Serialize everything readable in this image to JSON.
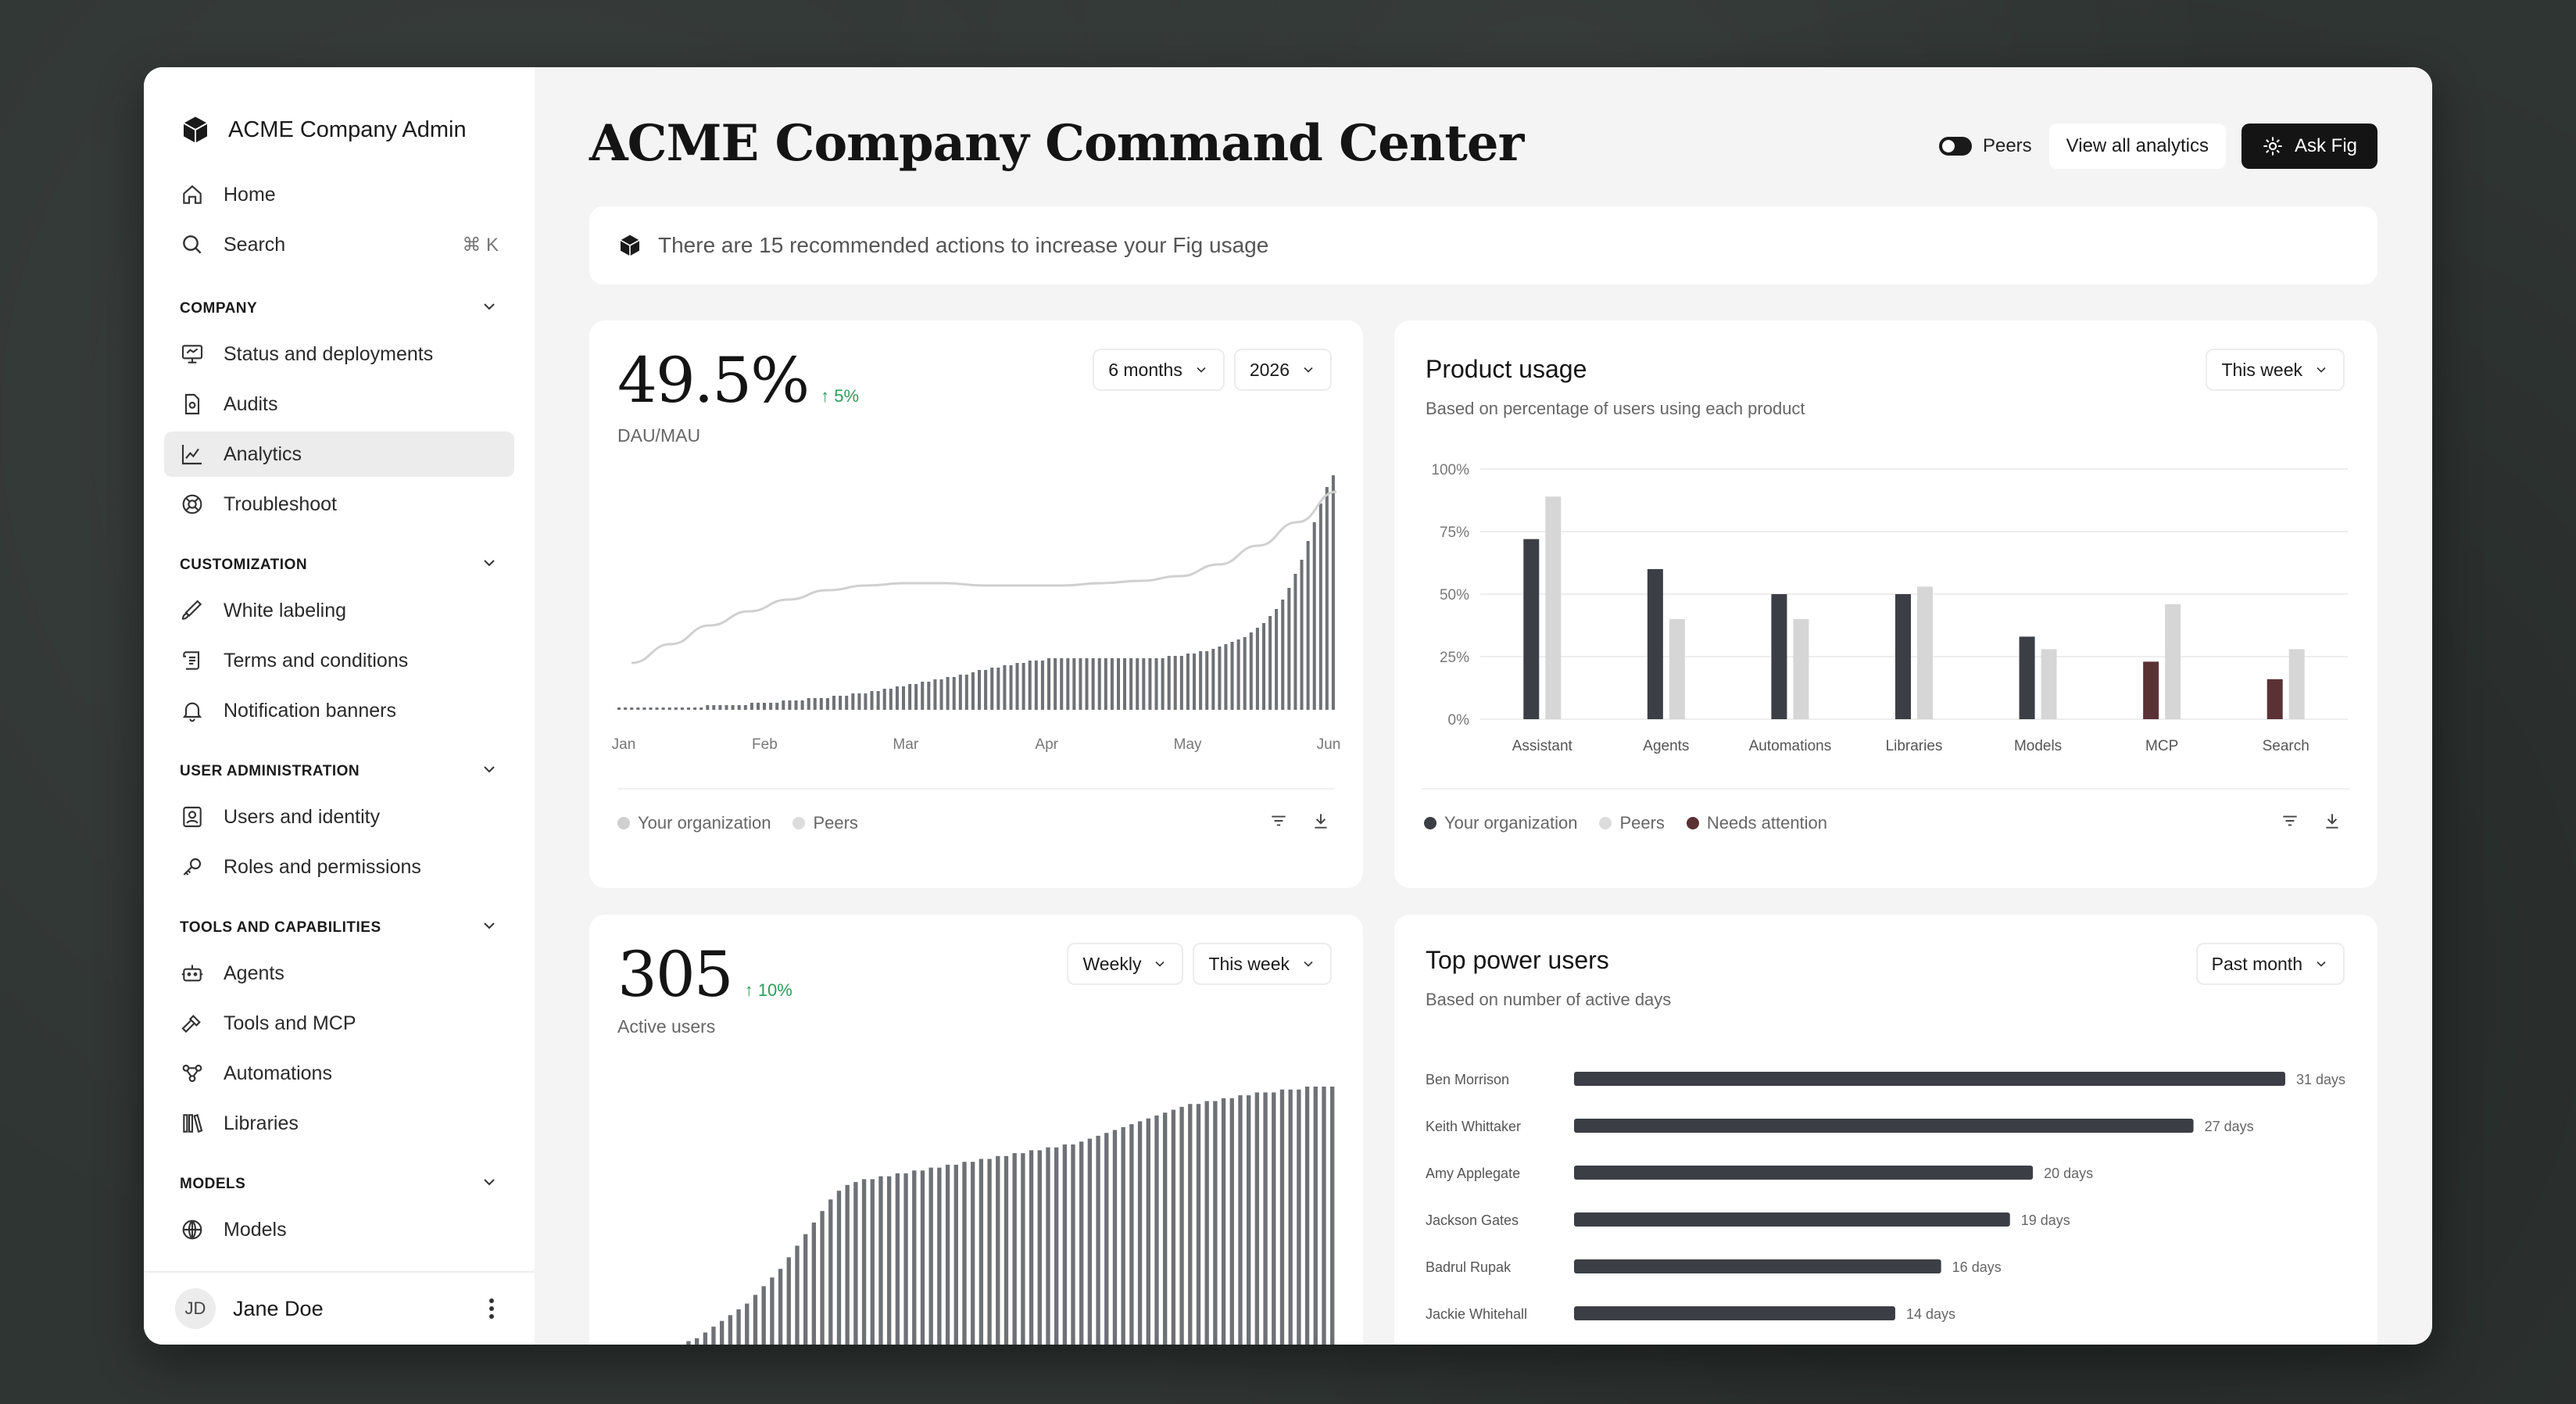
{
  "sidebar": {
    "brand": "ACME Company Admin",
    "top_items": [
      {
        "label": "Home",
        "icon": "home-icon"
      },
      {
        "label": "Search",
        "icon": "search-icon",
        "shortcut": "⌘ K"
      }
    ],
    "sections": [
      {
        "title": "COMPANY",
        "items": [
          {
            "label": "Status and deployments",
            "icon": "monitor-icon"
          },
          {
            "label": "Audits",
            "icon": "document-icon"
          },
          {
            "label": "Analytics",
            "icon": "chart-icon",
            "active": true
          },
          {
            "label": "Troubleshoot",
            "icon": "lifebuoy-icon"
          }
        ]
      },
      {
        "title": "CUSTOMIZATION",
        "items": [
          {
            "label": "White labeling",
            "icon": "brush-icon"
          },
          {
            "label": "Terms and conditions",
            "icon": "scroll-icon"
          },
          {
            "label": "Notification banners",
            "icon": "bell-icon"
          }
        ]
      },
      {
        "title": "USER ADMINISTRATION",
        "items": [
          {
            "label": "Users and identity",
            "icon": "id-card-icon"
          },
          {
            "label": "Roles and permissions",
            "icon": "key-icon"
          }
        ]
      },
      {
        "title": "TOOLS AND CAPABILITIES",
        "items": [
          {
            "label": "Agents",
            "icon": "robot-icon"
          },
          {
            "label": "Tools and MCP",
            "icon": "hammer-icon"
          },
          {
            "label": "Automations",
            "icon": "workflow-icon"
          },
          {
            "label": "Libraries",
            "icon": "books-icon"
          }
        ]
      },
      {
        "title": "MODELS",
        "items": [
          {
            "label": "Models",
            "icon": "globe-icon"
          }
        ]
      }
    ],
    "user": {
      "initials": "JD",
      "name": "Jane Doe"
    }
  },
  "header": {
    "title": "ACME Company Command Center",
    "peers_label": "Peers",
    "view_all": "View all analytics",
    "ask": "Ask Fig"
  },
  "banner": {
    "text": "There are 15 recommended actions to increase your Fig usage"
  },
  "dau_card": {
    "value": "49.5%",
    "delta": "↑ 5%",
    "label": "DAU/MAU",
    "range": "6 months",
    "year": "2026",
    "legend": [
      "Your organization",
      "Peers"
    ]
  },
  "usage_card": {
    "title": "Product usage",
    "subtitle": "Based on percentage of users using each product",
    "range": "This week",
    "legend": [
      "Your organization",
      "Peers",
      "Needs attention"
    ]
  },
  "active_card": {
    "value": "305",
    "delta": "↑ 10%",
    "label": "Active users",
    "granularity": "Weekly",
    "range": "This week"
  },
  "power_card": {
    "title": "Top power users",
    "subtitle": "Based on number of active days",
    "range": "Past month"
  },
  "colors": {
    "org": "#3b3f45",
    "peers": "#d6d6d6",
    "attention": "#5a3236",
    "positive": "#2f9a5a"
  },
  "chart_data": [
    {
      "type": "bar",
      "title": "DAU/MAU",
      "x_ticks": [
        "Jan",
        "Feb",
        "Mar",
        "Apr",
        "May",
        "Jun"
      ],
      "series": [
        {
          "name": "Your organization",
          "type": "bar",
          "values": [
            1,
            1,
            1,
            1,
            1,
            1,
            1,
            1,
            1,
            1,
            1,
            1,
            1,
            1,
            2,
            2,
            2,
            2,
            2,
            2,
            2,
            3,
            3,
            3,
            3,
            3,
            4,
            4,
            4,
            4,
            5,
            5,
            5,
            5,
            6,
            6,
            6,
            7,
            7,
            7,
            8,
            8,
            9,
            9,
            10,
            10,
            11,
            11,
            12,
            12,
            13,
            13,
            14,
            14,
            15,
            15,
            16,
            17,
            17,
            18,
            18,
            19,
            19,
            20,
            20,
            21,
            21,
            21,
            22,
            22,
            22,
            22,
            22,
            22,
            22,
            22,
            22,
            22,
            22,
            22,
            22,
            22,
            22,
            22,
            22,
            22,
            22,
            23,
            23,
            23,
            24,
            24,
            25,
            25,
            26,
            27,
            28,
            29,
            30,
            31,
            33,
            35,
            37,
            40,
            43,
            47,
            52,
            58,
            64,
            72,
            80,
            88,
            95,
            100
          ]
        },
        {
          "name": "Peers",
          "type": "line",
          "values": [
            20,
            28,
            36,
            42,
            47,
            51,
            53,
            54,
            54,
            53,
            53,
            53,
            54,
            55,
            57,
            62,
            70,
            80,
            93
          ]
        }
      ]
    },
    {
      "type": "bar",
      "title": "Product usage",
      "categories": [
        "Assistant",
        "Agents",
        "Automations",
        "Libraries",
        "Models",
        "MCP",
        "Search"
      ],
      "y_ticks": [
        "100%",
        "75%",
        "50%",
        "25%",
        "0%"
      ],
      "ylim": [
        0,
        100
      ],
      "series": [
        {
          "name": "Your organization",
          "values": [
            72,
            60,
            50,
            50,
            33,
            23,
            16
          ],
          "status": [
            "ok",
            "ok",
            "ok",
            "ok",
            "ok",
            "attention",
            "attention"
          ]
        },
        {
          "name": "Peers",
          "values": [
            89,
            40,
            40,
            53,
            28,
            46,
            28
          ]
        }
      ]
    },
    {
      "type": "bar",
      "title": "Active users",
      "series": [
        {
          "name": "Active users",
          "values": [
            3,
            4,
            5,
            6,
            7,
            8,
            9,
            10,
            12,
            13,
            15,
            17,
            19,
            21,
            23,
            25,
            28,
            31,
            34,
            37,
            41,
            45,
            49,
            53,
            57,
            61,
            64,
            66,
            67,
            68,
            68,
            69,
            69,
            70,
            70,
            71,
            71,
            72,
            72,
            73,
            73,
            74,
            74,
            75,
            75,
            76,
            76,
            77,
            77,
            78,
            78,
            79,
            79,
            80,
            80,
            81,
            82,
            83,
            84,
            85,
            86,
            87,
            88,
            89,
            90,
            91,
            92,
            93,
            94,
            94,
            95,
            95,
            96,
            96,
            97,
            97,
            98,
            98,
            98,
            99,
            99,
            99,
            100,
            100,
            100,
            100
          ]
        }
      ]
    },
    {
      "type": "bar",
      "title": "Top power users",
      "categories": [
        "Ben Morrison",
        "Keith Whittaker",
        "Amy Applegate",
        "Jackson Gates",
        "Badrul Rupak",
        "Jackie Whitehall"
      ],
      "values": [
        31,
        27,
        20,
        19,
        16,
        14
      ],
      "labels": [
        "31 days",
        "27 days",
        "20 days",
        "19 days",
        "16 days",
        "14 days"
      ]
    }
  ]
}
